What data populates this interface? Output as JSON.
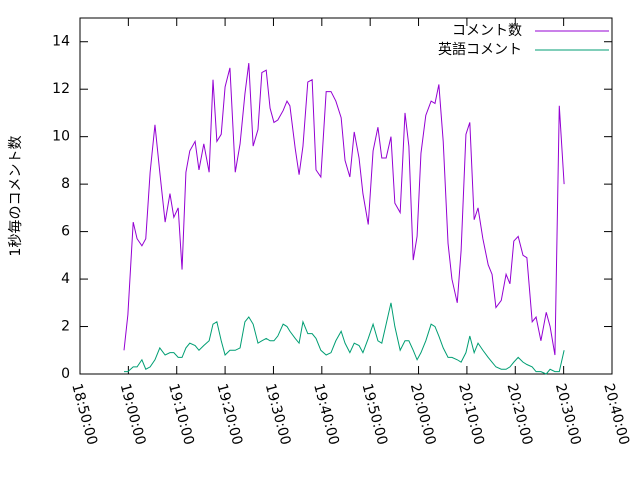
{
  "chart_data": {
    "type": "line",
    "y_label": "1秒毎のコメント数",
    "x": [
      1139.1,
      1139.9,
      1141.0,
      1141.8,
      1142.8,
      1143.6,
      1144.5,
      1145.5,
      1146.5,
      1147.6,
      1148.6,
      1149.4,
      1150.3,
      1151.1,
      1151.9,
      1152.7,
      1153.8,
      1154.6,
      1155.6,
      1156.7,
      1157.5,
      1158.3,
      1159.2,
      1160.0,
      1161.0,
      1162.1,
      1163.1,
      1164.1,
      1164.9,
      1165.8,
      1166.8,
      1167.6,
      1168.5,
      1169.3,
      1170.1,
      1170.9,
      1172.0,
      1172.8,
      1173.4,
      1174.5,
      1175.3,
      1176.1,
      1177.1,
      1178.0,
      1178.8,
      1179.8,
      1180.9,
      1181.9,
      1182.9,
      1184.0,
      1184.8,
      1185.8,
      1186.7,
      1187.7,
      1188.5,
      1189.6,
      1190.6,
      1191.6,
      1192.4,
      1193.3,
      1194.3,
      1195.1,
      1196.2,
      1197.2,
      1198.0,
      1198.9,
      1199.7,
      1200.5,
      1201.5,
      1202.6,
      1203.4,
      1204.2,
      1205.1,
      1206.1,
      1206.9,
      1208.0,
      1208.8,
      1209.8,
      1210.6,
      1211.5,
      1212.3,
      1213.3,
      1214.4,
      1215.2,
      1216.0,
      1217.1,
      1218.1,
      1218.9,
      1219.7,
      1220.6,
      1221.6,
      1222.4,
      1223.5,
      1224.3,
      1225.3,
      1226.4,
      1227.2,
      1228.2,
      1229.1,
      1230.1
    ],
    "series": [
      {
        "name": "コメント数",
        "color": "#9400d3",
        "values": [
          1.0,
          2.5,
          6.4,
          5.7,
          5.4,
          5.7,
          8.5,
          10.5,
          8.5,
          6.4,
          7.6,
          6.6,
          7.0,
          4.4,
          8.5,
          9.4,
          9.8,
          8.6,
          9.7,
          8.5,
          12.4,
          9.8,
          10.1,
          12.1,
          12.9,
          8.5,
          9.7,
          11.8,
          13.1,
          9.6,
          10.3,
          12.7,
          12.8,
          11.2,
          10.6,
          10.7,
          11.1,
          11.5,
          11.3,
          9.5,
          8.4,
          9.6,
          12.3,
          12.4,
          8.6,
          8.3,
          11.9,
          11.9,
          11.5,
          10.8,
          9.0,
          8.3,
          10.2,
          9.1,
          7.6,
          6.3,
          9.4,
          10.4,
          9.1,
          9.1,
          10.0,
          7.2,
          6.8,
          11.0,
          9.6,
          4.8,
          5.8,
          9.3,
          10.9,
          11.5,
          11.4,
          12.2,
          9.8,
          5.5,
          4.0,
          3.0,
          5.2,
          10.1,
          10.6,
          6.5,
          7.0,
          5.7,
          4.6,
          4.2,
          2.8,
          3.1,
          4.2,
          3.8,
          5.6,
          5.8,
          5.0,
          4.9,
          2.2,
          2.4,
          1.4,
          2.6,
          2.0,
          0.8,
          11.3,
          8.0
        ]
      },
      {
        "name": "英語コメント",
        "color": "#009e73",
        "values": [
          0.1,
          0.1,
          0.3,
          0.3,
          0.6,
          0.2,
          0.3,
          0.6,
          1.1,
          0.8,
          0.9,
          0.9,
          0.7,
          0.7,
          1.1,
          1.3,
          1.2,
          1.0,
          1.2,
          1.4,
          2.1,
          2.2,
          1.4,
          0.8,
          1.0,
          1.0,
          1.1,
          2.2,
          2.4,
          2.1,
          1.3,
          1.4,
          1.5,
          1.4,
          1.4,
          1.6,
          2.1,
          2.0,
          1.8,
          1.5,
          1.3,
          2.2,
          1.7,
          1.7,
          1.5,
          1.0,
          0.8,
          0.9,
          1.4,
          1.8,
          1.3,
          0.9,
          1.3,
          1.2,
          0.9,
          1.5,
          2.1,
          1.4,
          1.3,
          2.1,
          3.0,
          2.0,
          1.0,
          1.4,
          1.4,
          1.0,
          0.6,
          0.9,
          1.4,
          2.1,
          2.0,
          1.6,
          1.1,
          0.7,
          0.7,
          0.6,
          0.5,
          0.9,
          1.6,
          0.9,
          1.3,
          1.0,
          0.7,
          0.5,
          0.3,
          0.2,
          0.2,
          0.3,
          0.5,
          0.7,
          0.5,
          0.4,
          0.3,
          0.1,
          0.1,
          0.0,
          0.2,
          0.1,
          0.1,
          1.0
        ]
      }
    ],
    "xlim": [
      1130,
      1240
    ],
    "xticks": [
      {
        "value": 1130,
        "label": "18:50:00"
      },
      {
        "value": 1140,
        "label": "19:00:00"
      },
      {
        "value": 1150,
        "label": "19:10:00"
      },
      {
        "value": 1160,
        "label": "19:20:00"
      },
      {
        "value": 1170,
        "label": "19:30:00"
      },
      {
        "value": 1180,
        "label": "19:40:00"
      },
      {
        "value": 1190,
        "label": "19:50:00"
      },
      {
        "value": 1200,
        "label": "20:00:00"
      },
      {
        "value": 1210,
        "label": "20:10:00"
      },
      {
        "value": 1220,
        "label": "20:20:00"
      },
      {
        "value": 1230,
        "label": "20:30:00"
      },
      {
        "value": 1240,
        "label": "20:40:00"
      }
    ],
    "ylim": [
      0,
      15
    ],
    "yticks": [
      0,
      2,
      4,
      6,
      8,
      10,
      12,
      14
    ],
    "legend": "top-right"
  }
}
